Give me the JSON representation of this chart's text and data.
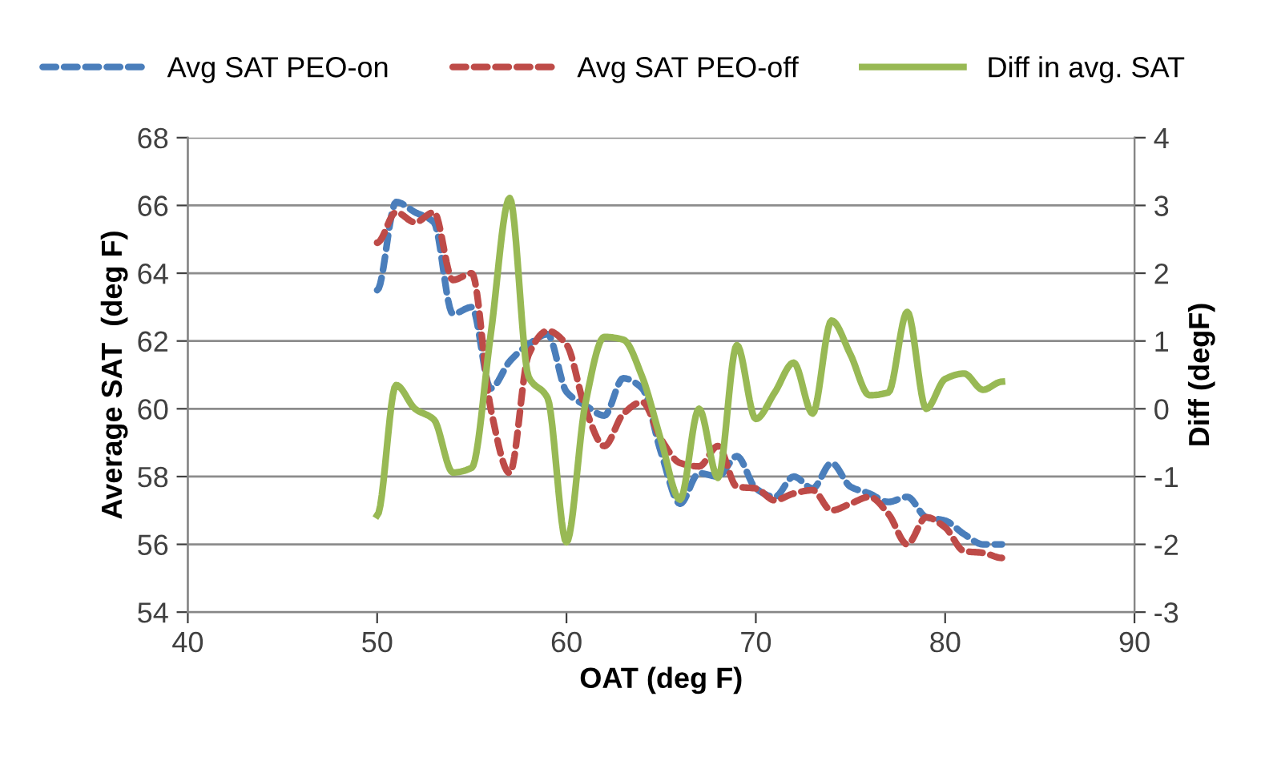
{
  "chart_data": {
    "type": "line",
    "xlabel": "OAT (deg F)",
    "ylabel": "Average SAT  (deg F)",
    "y2label": "Diff (degF)",
    "x": [
      50,
      51,
      52,
      53,
      54,
      55,
      56,
      57,
      58,
      59,
      60,
      61,
      62,
      63,
      64,
      65,
      66,
      67,
      68,
      69,
      70,
      71,
      72,
      73,
      74,
      75,
      76,
      77,
      78,
      79,
      80,
      81,
      82,
      83
    ],
    "series": [
      {
        "name": "Avg SAT PEO-on",
        "color": "#4a7ebb",
        "line_style": "dashed",
        "values": [
          63.5,
          66.1,
          65.8,
          65.5,
          62.8,
          63.0,
          60.6,
          61.4,
          61.9,
          62.2,
          60.5,
          60.1,
          59.8,
          60.9,
          60.6,
          58.7,
          57.2,
          58.1,
          58.0,
          58.6,
          57.65,
          57.4,
          58.0,
          57.65,
          58.4,
          57.7,
          57.5,
          57.25,
          57.4,
          56.8,
          56.7,
          56.3,
          56.0,
          56.0
        ]
      },
      {
        "name": "Avg SAT PEO-off",
        "color": "#be4b48",
        "line_style": "dashed",
        "values": [
          64.9,
          65.8,
          65.5,
          65.8,
          63.8,
          64.0,
          60.0,
          58.1,
          61.6,
          62.3,
          61.9,
          60.0,
          58.9,
          59.85,
          60.2,
          59.1,
          58.4,
          58.3,
          58.9,
          57.7,
          57.65,
          57.3,
          57.5,
          57.6,
          57.0,
          57.2,
          57.4,
          56.9,
          56.0,
          56.8,
          56.5,
          55.8,
          55.75,
          55.6
        ]
      },
      {
        "name": "Diff in avg. SAT",
        "color": "#98b954",
        "line_style": "solid",
        "axis": "y2",
        "values": [
          -1.57,
          0.35,
          0.0,
          -0.16,
          -0.94,
          -0.87,
          1.1,
          3.11,
          0.47,
          0.16,
          -1.97,
          0.08,
          1.06,
          1.02,
          0.47,
          -0.47,
          -1.34,
          0.0,
          -1.02,
          0.94,
          -0.15,
          0.24,
          0.68,
          -0.07,
          1.3,
          0.8,
          0.2,
          0.24,
          1.43,
          0.0,
          0.44,
          0.52,
          0.28,
          0.4
        ]
      }
    ],
    "xlim": [
      40,
      90
    ],
    "xticks": [
      40,
      50,
      60,
      70,
      80,
      90
    ],
    "ylim": [
      54,
      68
    ],
    "yticks": [
      54,
      56,
      58,
      60,
      62,
      64,
      66,
      68
    ],
    "y2lim": [
      -3,
      4
    ],
    "y2ticks": [
      -3,
      -2,
      -1,
      0,
      1,
      2,
      3,
      4
    ],
    "grid": "y",
    "legend": "top",
    "marker": "none"
  }
}
